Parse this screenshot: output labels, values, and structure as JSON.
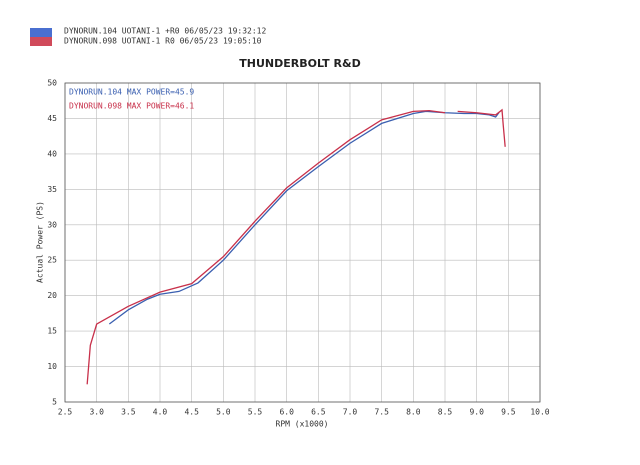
{
  "chart_data": {
    "type": "line",
    "title": "THUNDERBOLT R&D",
    "header_lines": [
      "DYNORUN.104   UOTANI-1 +R0  06/05/23 19:32:12",
      "DYNORUN.098   UOTANI-1  R0  06/05/23 19:05:10"
    ],
    "x_label": "RPM (x1000)",
    "y_label": "Actual Power (PS)",
    "xlim": [
      2.5,
      10
    ],
    "ylim": [
      5,
      50
    ],
    "xticks": [
      2.5,
      {
        "value": 3,
        "label": "3.0"
      },
      3.5,
      {
        "value": 4,
        "label": "4.0"
      },
      4.5,
      {
        "value": 5,
        "label": "5.0"
      },
      5.5,
      {
        "value": 6,
        "label": "6.0"
      },
      6.5,
      {
        "value": 7,
        "label": "7.0"
      },
      7.5,
      {
        "value": 8,
        "label": "8.0"
      },
      8.5,
      {
        "value": 9,
        "label": "9.0"
      },
      9.5,
      {
        "value": 10,
        "label": "10.0"
      }
    ],
    "yticks": [
      5,
      10,
      15,
      20,
      25,
      30,
      35,
      40,
      45,
      50
    ],
    "grid": true,
    "series": [
      {
        "name": "DYNORUN.104   MAX POWER=45.9",
        "color": "#3a5fb0",
        "x": [
          3.2,
          3.5,
          3.8,
          4.0,
          4.3,
          4.6,
          5.0,
          5.5,
          6.0,
          6.5,
          7.0,
          7.5,
          8.0,
          8.2,
          8.5,
          8.8,
          9.0,
          9.2,
          9.3,
          9.35
        ],
        "values": [
          16,
          18,
          19.5,
          20.2,
          20.6,
          21.8,
          25,
          30,
          34.8,
          38.2,
          41.5,
          44.3,
          45.7,
          46,
          45.8,
          45.7,
          45.7,
          45.5,
          45.2,
          45.8
        ]
      },
      {
        "name": "DYNORUN.098   MAX POWER=46.1",
        "color": "#c8304a",
        "x": [
          2.85,
          2.9,
          3.0,
          3.2,
          3.5,
          4.0,
          4.5,
          5.0,
          5.5,
          6.0,
          6.5,
          7.0,
          7.5,
          8.0,
          8.25,
          8.5,
          8.6,
          8.7,
          9.0,
          9.3,
          9.4,
          9.42,
          9.45
        ],
        "values": [
          7.5,
          13,
          16,
          17,
          18.5,
          20.5,
          21.7,
          25.5,
          30.5,
          35.2,
          38.7,
          42,
          44.8,
          46,
          46.1,
          45.8,
          null,
          46,
          45.8,
          45.5,
          46.2,
          44,
          41
        ]
      }
    ]
  }
}
